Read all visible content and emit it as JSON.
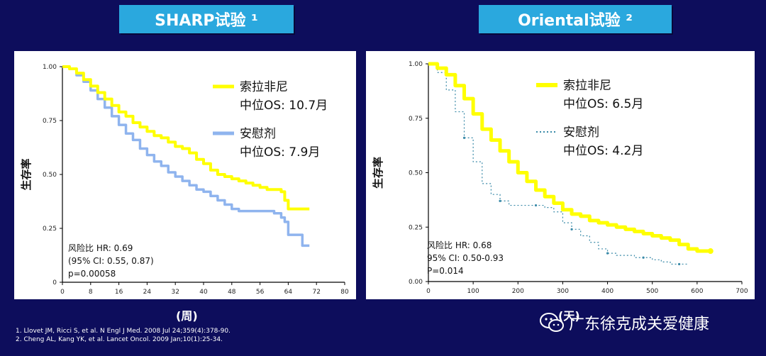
{
  "titles": {
    "left": "SHARP试验 ¹",
    "right": "Oriental试验 ²"
  },
  "x_units": {
    "left": "(周)",
    "right": "(天)"
  },
  "references": [
    "1. Llovet JM, Ricci S, et al. N Engl J Med. 2008 Jul 24;359(4):378-90.",
    "2. Cheng AL, Kang YK, et al. Lancet Oncol. 2009 Jan;10(1):25-34."
  ],
  "watermark": {
    "text": "广东徐克成关爱健康",
    "icon": "wechat-icon"
  },
  "colors": {
    "background": "#0d0d5c",
    "title_box": "#2aa8de",
    "sorafenib": "#ffff00",
    "placebo_left": "#8fb4ee",
    "placebo_right": "#3a8aa8"
  },
  "chart_data": [
    {
      "type": "line",
      "title": "SHARP试验 ¹",
      "ylabel": "生存率",
      "xlabel": "(周)",
      "xlim": [
        0,
        80
      ],
      "ylim": [
        0,
        1
      ],
      "xticks": [
        "0",
        "8",
        "16",
        "24",
        "32",
        "40",
        "48",
        "56",
        "64",
        "72",
        "80"
      ],
      "yticks": [
        "0",
        "0.25",
        "0.50",
        "0.75",
        "1.00"
      ],
      "legend": [
        {
          "name": "索拉非尼",
          "detail": "中位OS: 10.7月",
          "color": "#ffff00",
          "style": "solid"
        },
        {
          "name": "安慰剂",
          "detail": "中位OS: 7.9月",
          "color": "#8fb4ee",
          "style": "solid"
        }
      ],
      "annotations": [
        "风险比 HR: 0.69",
        "(95% CI: 0.55, 0.87)",
        "p=0.00058"
      ],
      "series": [
        {
          "name": "索拉非尼",
          "x": [
            0,
            2,
            4,
            6,
            8,
            10,
            12,
            14,
            16,
            18,
            20,
            22,
            24,
            26,
            28,
            30,
            32,
            34,
            36,
            38,
            40,
            42,
            44,
            46,
            48,
            50,
            52,
            54,
            56,
            58,
            60,
            62,
            63,
            64,
            66,
            68,
            70
          ],
          "y": [
            1.0,
            0.99,
            0.97,
            0.94,
            0.91,
            0.88,
            0.85,
            0.82,
            0.79,
            0.77,
            0.74,
            0.72,
            0.7,
            0.68,
            0.67,
            0.65,
            0.63,
            0.62,
            0.6,
            0.57,
            0.55,
            0.52,
            0.5,
            0.49,
            0.48,
            0.47,
            0.46,
            0.45,
            0.44,
            0.43,
            0.43,
            0.42,
            0.38,
            0.34,
            0.34,
            0.34,
            0.34
          ]
        },
        {
          "name": "安慰剂",
          "x": [
            0,
            2,
            4,
            6,
            8,
            10,
            12,
            14,
            16,
            18,
            20,
            22,
            24,
            26,
            28,
            30,
            32,
            34,
            36,
            38,
            40,
            42,
            44,
            46,
            48,
            50,
            52,
            54,
            56,
            58,
            60,
            62,
            63,
            64,
            66,
            68,
            70
          ],
          "y": [
            1.0,
            0.99,
            0.96,
            0.93,
            0.89,
            0.85,
            0.81,
            0.77,
            0.73,
            0.69,
            0.66,
            0.62,
            0.59,
            0.56,
            0.54,
            0.51,
            0.49,
            0.47,
            0.45,
            0.43,
            0.42,
            0.4,
            0.38,
            0.36,
            0.34,
            0.33,
            0.33,
            0.33,
            0.33,
            0.33,
            0.32,
            0.3,
            0.28,
            0.22,
            0.22,
            0.17,
            0.17
          ]
        }
      ]
    },
    {
      "type": "line",
      "title": "Oriental试验 ²",
      "ylabel": "生存率",
      "xlabel": "(天)",
      "xlim": [
        0,
        700
      ],
      "ylim": [
        0,
        1
      ],
      "xticks": [
        "0",
        "100",
        "200",
        "300",
        "400",
        "500",
        "600",
        "700"
      ],
      "yticks": [
        "0.00",
        "0.25",
        "0.50",
        "0.75",
        "1.00"
      ],
      "legend": [
        {
          "name": "索拉非尼",
          "detail": "中位OS: 6.5月",
          "color": "#ffff00",
          "style": "solid"
        },
        {
          "name": "安慰剂",
          "detail": "中位OS: 4.2月",
          "color": "#3a8aa8",
          "style": "dotted"
        }
      ],
      "annotations": [
        "风险比 HR: 0.68",
        "95% CI: 0.50-0.93",
        "P=0.014"
      ],
      "series": [
        {
          "name": "索拉非尼",
          "x": [
            0,
            20,
            40,
            60,
            80,
            100,
            120,
            140,
            160,
            180,
            200,
            220,
            240,
            260,
            280,
            300,
            320,
            340,
            360,
            380,
            400,
            420,
            440,
            460,
            480,
            500,
            520,
            540,
            560,
            580,
            600,
            630
          ],
          "y": [
            1.0,
            0.98,
            0.95,
            0.9,
            0.84,
            0.77,
            0.7,
            0.65,
            0.6,
            0.55,
            0.5,
            0.46,
            0.42,
            0.39,
            0.36,
            0.33,
            0.31,
            0.3,
            0.28,
            0.27,
            0.26,
            0.25,
            0.24,
            0.23,
            0.22,
            0.21,
            0.2,
            0.19,
            0.17,
            0.15,
            0.14,
            0.14
          ]
        },
        {
          "name": "安慰剂",
          "x": [
            0,
            20,
            40,
            60,
            80,
            100,
            120,
            140,
            160,
            180,
            200,
            220,
            240,
            260,
            280,
            300,
            320,
            340,
            360,
            380,
            400,
            420,
            440,
            460,
            480,
            500,
            520,
            540,
            560,
            580
          ],
          "y": [
            1.0,
            0.96,
            0.88,
            0.78,
            0.66,
            0.55,
            0.45,
            0.4,
            0.37,
            0.35,
            0.35,
            0.35,
            0.35,
            0.34,
            0.32,
            0.27,
            0.24,
            0.21,
            0.18,
            0.15,
            0.13,
            0.12,
            0.12,
            0.11,
            0.11,
            0.1,
            0.09,
            0.08,
            0.08,
            0.08
          ]
        }
      ]
    }
  ]
}
